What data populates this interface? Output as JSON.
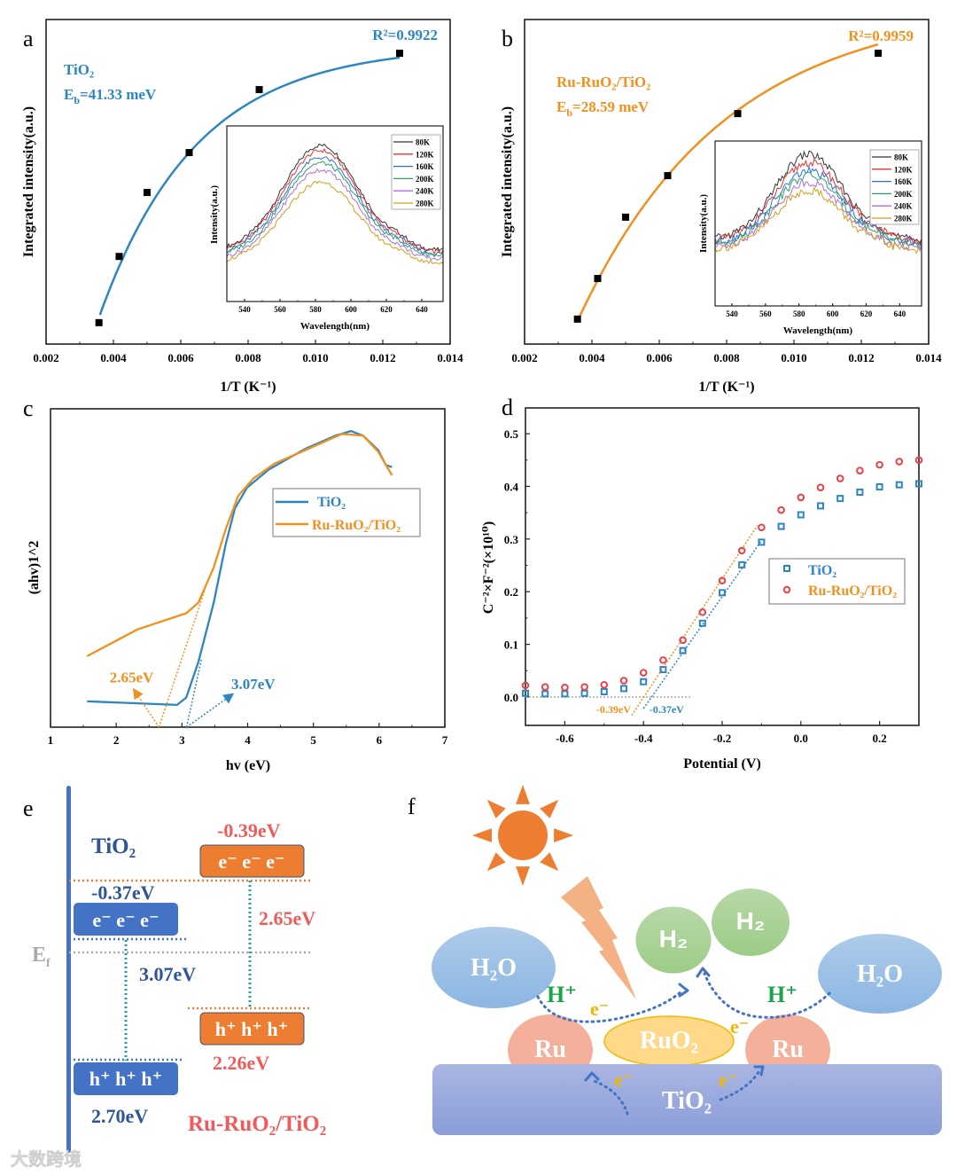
{
  "figure_labels": {
    "a": "a",
    "b": "b",
    "c": "c",
    "d": "d",
    "e": "e",
    "f": "f"
  },
  "chart_data": [
    {
      "panel": "a",
      "type": "scatter",
      "title": "",
      "xlabel": "1/T (K⁻¹)",
      "ylabel": "Integrated intensity(a.u.)",
      "xlim": [
        0.002,
        0.014
      ],
      "ylim": [
        0,
        1
      ],
      "x_ticks": [
        0.002,
        0.004,
        0.006,
        0.008,
        0.01,
        0.012,
        0.014
      ],
      "x_tick_labels": [
        "0.002",
        "0.004",
        "0.006",
        "0.008",
        "0.010",
        "0.012",
        "0.014"
      ],
      "series": [
        {
          "name": "TiO₂",
          "x": [
            0.00357,
            0.00417,
            0.005,
            0.00625,
            0.00833,
            0.0125
          ],
          "y": [
            0.066,
            0.27,
            0.467,
            0.59,
            0.784,
            0.896
          ]
        }
      ],
      "fit": {
        "model": "a - b*exp(-k*(x - x0))",
        "a": 0.92,
        "b": 0.83,
        "k": 348,
        "x0": 0.0036,
        "x_end": 0.0125
      },
      "annotations": {
        "r2": "R²=0.9922",
        "sample": "TiO₂",
        "eb_symbol": "E",
        "eb_sub": "b",
        "eb_value": "=41.33 meV"
      },
      "colors": {
        "fit": "#2e86c1",
        "points": "#000000",
        "text": "#2e86c1"
      },
      "inset": {
        "type": "line",
        "xlabel": "Wavelength(nm)",
        "ylabel": "Intensity(a.u.)",
        "xlim": [
          530,
          652
        ],
        "ylim": [
          0,
          1
        ],
        "x_ticks": [
          540,
          560,
          580,
          600,
          620,
          640
        ],
        "x_tick_labels": [
          "540",
          "560",
          "580",
          "600",
          "620",
          "640"
        ],
        "legend_position": "top-right",
        "series": [
          {
            "name": "80K",
            "color": "#333333",
            "peak_nm": 583,
            "peak": 0.89,
            "baseline": 0.29,
            "width_nm": 21
          },
          {
            "name": "120K",
            "color": "#e8332f",
            "peak_nm": 583,
            "peak": 0.86,
            "baseline": 0.28,
            "width_nm": 21
          },
          {
            "name": "160K",
            "color": "#2f6fd6",
            "peak_nm": 583,
            "peak": 0.82,
            "baseline": 0.27,
            "width_nm": 21
          },
          {
            "name": "200K",
            "color": "#2ca25f",
            "peak_nm": 583,
            "peak": 0.79,
            "baseline": 0.26,
            "width_nm": 21
          },
          {
            "name": "240K",
            "color": "#b36ae2",
            "peak_nm": 583,
            "peak": 0.75,
            "baseline": 0.24,
            "width_nm": 21
          },
          {
            "name": "280K",
            "color": "#d4a017",
            "peak_nm": 583,
            "peak": 0.68,
            "baseline": 0.22,
            "width_nm": 21
          }
        ]
      }
    },
    {
      "panel": "b",
      "type": "scatter",
      "title": "",
      "xlabel": "1/T (K⁻¹)",
      "ylabel": "Integrated intensity(a.u.)",
      "xlim": [
        0.002,
        0.014
      ],
      "ylim": [
        0,
        1
      ],
      "x_ticks": [
        0.002,
        0.004,
        0.006,
        0.008,
        0.01,
        0.012,
        0.014
      ],
      "x_tick_labels": [
        "0.002",
        "0.004",
        "0.006",
        "0.008",
        "0.010",
        "0.012",
        "0.014"
      ],
      "series": [
        {
          "name": "Ru-RuO₂/TiO₂",
          "x": [
            0.00357,
            0.00417,
            0.005,
            0.00625,
            0.00833,
            0.0125
          ],
          "y": [
            0.077,
            0.202,
            0.391,
            0.519,
            0.71,
            0.896
          ]
        }
      ],
      "fit": {
        "model": "a - b*exp(-k*(x - x0))",
        "a": 1.05,
        "b": 0.973,
        "k": 229,
        "x0": 0.0036,
        "x_end": 0.0125
      },
      "annotations": {
        "r2": "R²=0.9959",
        "sample": "Ru-RuO₂/TiO₂",
        "eb_symbol": "E",
        "eb_sub": "b",
        "eb_value": "=28.59 meV"
      },
      "colors": {
        "fit": "#f0901e",
        "points": "#000000",
        "text": "#f0901e"
      },
      "inset": {
        "type": "line",
        "xlabel": "Wavelength(nm)",
        "ylabel": "Intensity(a.u.)",
        "xlim": [
          530,
          653
        ],
        "ylim": [
          0,
          1
        ],
        "x_ticks": [
          540,
          560,
          580,
          600,
          620,
          640
        ],
        "x_tick_labels": [
          "540",
          "560",
          "580",
          "600",
          "620",
          "640"
        ],
        "legend_position": "top-right",
        "series": [
          {
            "name": "80K",
            "color": "#333333",
            "peak_nm": 586,
            "peak": 0.92,
            "baseline": 0.4,
            "width_nm": 20
          },
          {
            "name": "120K",
            "color": "#e8332f",
            "peak_nm": 586,
            "peak": 0.87,
            "baseline": 0.39,
            "width_nm": 20
          },
          {
            "name": "160K",
            "color": "#2f6fd6",
            "peak_nm": 586,
            "peak": 0.82,
            "baseline": 0.38,
            "width_nm": 20
          },
          {
            "name": "200K",
            "color": "#2ca25f",
            "peak_nm": 586,
            "peak": 0.79,
            "baseline": 0.37,
            "width_nm": 20
          },
          {
            "name": "240K",
            "color": "#b36ae2",
            "peak_nm": 586,
            "peak": 0.75,
            "baseline": 0.35,
            "width_nm": 20
          },
          {
            "name": "280K",
            "color": "#d4a017",
            "peak_nm": 586,
            "peak": 0.7,
            "baseline": 0.34,
            "width_nm": 20
          }
        ]
      }
    },
    {
      "panel": "c",
      "type": "line",
      "title": "",
      "xlabel": "hv (eV)",
      "ylabel": "(ahv)1^2",
      "xlim": [
        1,
        7
      ],
      "ylim": [
        0,
        1
      ],
      "x_ticks": [
        1,
        2,
        3,
        4,
        5,
        6,
        7
      ],
      "x_tick_labels": [
        "1",
        "2",
        "3",
        "4",
        "5",
        "6",
        "7"
      ],
      "legend_position": "center-right",
      "series": [
        {
          "name": "TiO₂",
          "color": "#2e86c1",
          "x": [
            1.557,
            2.926,
            3.065,
            3.25,
            3.483,
            3.668,
            3.807,
            3.993,
            4.318,
            4.875,
            5.339,
            5.571,
            5.756,
            5.988,
            6.104,
            6.197
          ],
          "y": [
            0.081,
            0.07,
            0.093,
            0.205,
            0.391,
            0.577,
            0.688,
            0.753,
            0.809,
            0.874,
            0.916,
            0.93,
            0.916,
            0.87,
            0.823,
            0.817
          ]
        },
        {
          "name": "Ru-RuO₂/TiO₂",
          "color": "#f0901e",
          "x": [
            1.557,
            2.323,
            3.065,
            3.25,
            3.483,
            3.668,
            3.854,
            4.086,
            4.411,
            4.875,
            5.432,
            5.756,
            5.988,
            6.197
          ],
          "y": [
            0.223,
            0.307,
            0.358,
            0.391,
            0.502,
            0.623,
            0.726,
            0.781,
            0.828,
            0.87,
            0.921,
            0.916,
            0.865,
            0.791
          ]
        }
      ],
      "tangents": [
        {
          "name": "Ru-RuO₂/TiO₂",
          "color": "#f0901e",
          "x": [
            2.65,
            3.343
          ],
          "y": [
            0,
            0.428
          ],
          "arrow_to": [
            2.276,
            0.116
          ],
          "label": "2.65eV",
          "label_at": [
            1.9,
            0.14
          ]
        },
        {
          "name": "TiO₂",
          "color": "#2e86c1",
          "x": [
            3.07,
            3.297
          ],
          "y": [
            0,
            0.214
          ],
          "arrow_to": [
            3.761,
            0.102
          ],
          "label": "3.07eV",
          "label_at": [
            3.75,
            0.12
          ]
        }
      ]
    },
    {
      "panel": "d",
      "type": "scatter",
      "title": "",
      "xlabel": "Potential (V)",
      "ylabel": "C⁻²×F⁻²(×10¹⁰)",
      "xlim": [
        -0.7,
        0.3
      ],
      "ylim": [
        -0.054,
        0.549
      ],
      "x_ticks": [
        -0.6,
        -0.4,
        -0.2,
        0.0,
        0.2
      ],
      "x_tick_labels": [
        "-0.6",
        "-0.4",
        "-0.2",
        "0.0",
        "0.2"
      ],
      "y_ticks": [
        0.0,
        0.1,
        0.2,
        0.3,
        0.4,
        0.5
      ],
      "y_tick_labels": [
        "0.0",
        "0.1",
        "0.2",
        "0.3",
        "0.4",
        "0.5"
      ],
      "legend_position": "center-right",
      "x": [
        -0.7,
        -0.65,
        -0.6,
        -0.55,
        -0.5,
        -0.45,
        -0.4,
        -0.35,
        -0.3,
        -0.25,
        -0.2,
        -0.15,
        -0.1,
        -0.05,
        0.0,
        0.05,
        0.1,
        0.15,
        0.2,
        0.25,
        0.3
      ],
      "series": [
        {
          "name": "TiO₂",
          "marker": "square",
          "color": "#2e86c1",
          "legend_color": "#2e86c1",
          "y": [
            0.007,
            0.006,
            0.006,
            0.007,
            0.01,
            0.016,
            0.029,
            0.052,
            0.088,
            0.14,
            0.198,
            0.251,
            0.294,
            0.324,
            0.346,
            0.363,
            0.377,
            0.389,
            0.399,
            0.403,
            0.405
          ]
        },
        {
          "name": "Ru-RuO₂/TiO₂",
          "marker": "circle",
          "color": "#e8414a",
          "legend_color": "#f0901e",
          "y": [
            0.022,
            0.019,
            0.018,
            0.019,
            0.023,
            0.031,
            0.046,
            0.07,
            0.108,
            0.161,
            0.221,
            0.278,
            0.322,
            0.355,
            0.379,
            0.398,
            0.415,
            0.43,
            0.441,
            0.447,
            0.45
          ]
        }
      ],
      "baseline": {
        "x": [
          -0.7,
          -0.28
        ],
        "y": 0,
        "color": "#aaaaaa"
      },
      "fits": [
        {
          "name": "TiO₂",
          "color": "#2e86c1",
          "x": [
            -0.4,
            -0.1
          ],
          "y": [
            -0.022,
            0.297
          ],
          "label": "-0.37eV",
          "label_at": [
            -0.385,
            -0.03
          ]
        },
        {
          "name": "Ru-RuO₂/TiO₂",
          "color": "#f0901e",
          "x": [
            -0.43,
            -0.11
          ],
          "y": [
            -0.035,
            0.326
          ],
          "label": "-0.39eV",
          "label_at": [
            -0.52,
            -0.03
          ]
        }
      ]
    }
  ],
  "diagram_e": {
    "tio2_label": "TiO₂",
    "tio2_cb": "-0.37eV",
    "tio2_vb": "2.70eV",
    "tio2_gap": "3.07eV",
    "ru_cb": "-0.39eV",
    "ru_vb": "2.26eV",
    "ru_gap": "2.65eV",
    "ru_label": "Ru-RuO₂/TiO₂",
    "electrons": "e⁻ e⁻ e⁻",
    "holes": "h⁺ h⁺ h⁺",
    "fermi_symbol": "E",
    "fermi_sub": "f",
    "colors": {
      "tio2": "#4472c4",
      "tio2_text": "#2f5597",
      "ru": "#ed7d31",
      "ru_text": "#ef5b5b",
      "gap_line": "#1fa0a0",
      "fermi": "#aaaaaa"
    }
  },
  "diagram_f": {
    "h2o": "H₂O",
    "h2": "H₂",
    "h_plus": "H⁺",
    "electron": "e⁻",
    "ru": "Ru",
    "ruo2": "RuO₂",
    "tio2": "TiO₂",
    "colors": {
      "sun": "#ed7d31",
      "bolt": "#f4b183",
      "water": "#9dc3e6",
      "hydrogen": "#a9d18e",
      "ru": "#f4b09a",
      "ruo2": "#ffd98a",
      "substrate": "#9aa8de",
      "h_plus": "#1aa34a",
      "electron": "#f5b400",
      "path": "#4472c4"
    }
  },
  "watermark": "大数跨境"
}
